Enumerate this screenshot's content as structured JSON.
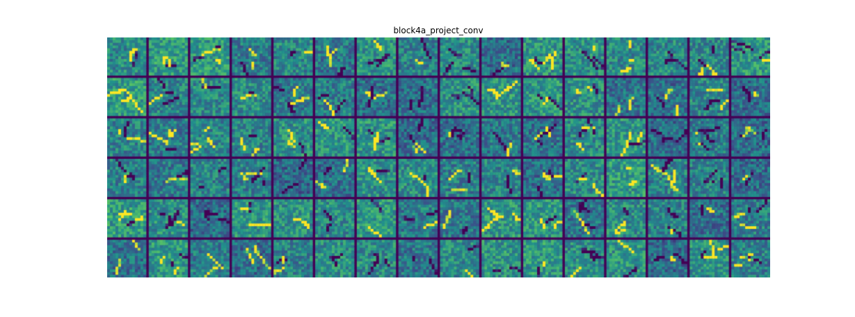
{
  "figure": {
    "title": "block4a_project_conv"
  },
  "grid": {
    "rows": 6,
    "cols": 16,
    "cell_resolution": 14,
    "colormap": "viridis",
    "colormap_colors": [
      "#440154",
      "#3b528b",
      "#21918c",
      "#5ec962",
      "#fde725"
    ],
    "separator_color": "#440154"
  }
}
